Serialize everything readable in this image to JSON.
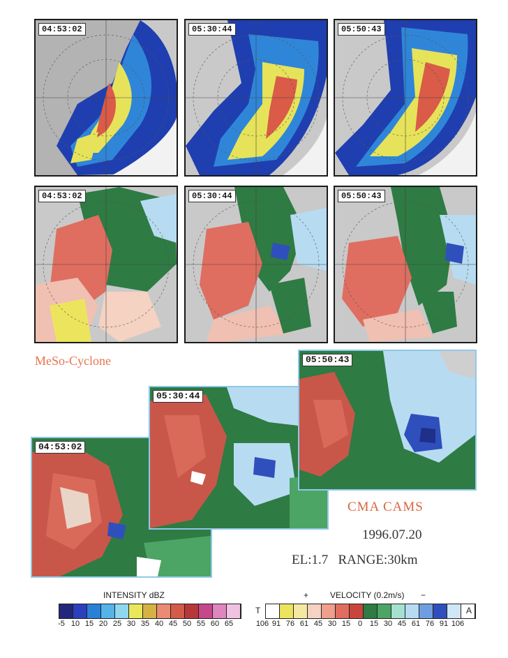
{
  "row1": [
    {
      "time": "04:53:02"
    },
    {
      "time": "05:30:44"
    },
    {
      "time": "05:50:43"
    }
  ],
  "row2": [
    {
      "time": "04:53:02"
    },
    {
      "time": "05:30:44"
    },
    {
      "time": "05:50:43"
    }
  ],
  "mesocyclone_label": "MeSo-Cyclone",
  "enlarged": [
    {
      "time": "04:53:02"
    },
    {
      "time": "05:30:44"
    },
    {
      "time": "05:50:43"
    }
  ],
  "caption": {
    "org": "CMA CAMS",
    "date": "1996.07.20",
    "el_range": "EL:1.7   RANGE:30km"
  },
  "intensity_legend": {
    "title": "INTENSITY dBZ",
    "ticks": [
      "-5",
      "10",
      "15",
      "20",
      "25",
      "30",
      "35",
      "40",
      "45",
      "50",
      "55",
      "60",
      "65"
    ],
    "colors": [
      "#23277a",
      "#2c3fbd",
      "#2a7fd9",
      "#55b3ea",
      "#8fd7ef",
      "#e8e85a",
      "#d4b245",
      "#ec8a73",
      "#d55b48",
      "#b8383a",
      "#c6488b",
      "#de86c0",
      "#f0c2e2"
    ]
  },
  "velocity_legend": {
    "title": "VELOCITY (0.2m/s)",
    "plus": "+",
    "minus": "−",
    "left_symbol": "T",
    "right_symbol": "A",
    "ticks": [
      "106",
      "91",
      "76",
      "61",
      "45",
      "30",
      "15",
      "0",
      "15",
      "30",
      "45",
      "61",
      "76",
      "91",
      "106"
    ],
    "colors": [
      "#ffffff",
      "#ede45e",
      "#f4e9a0",
      "#f5d2c2",
      "#ef9f8c",
      "#df6e60",
      "#c8453c",
      "#2e7b44",
      "#4ca465",
      "#a6e0d0",
      "#b7dcf1",
      "#6f9ee0",
      "#2f4fbd",
      "#cfe6f6",
      "#ffffff"
    ]
  }
}
